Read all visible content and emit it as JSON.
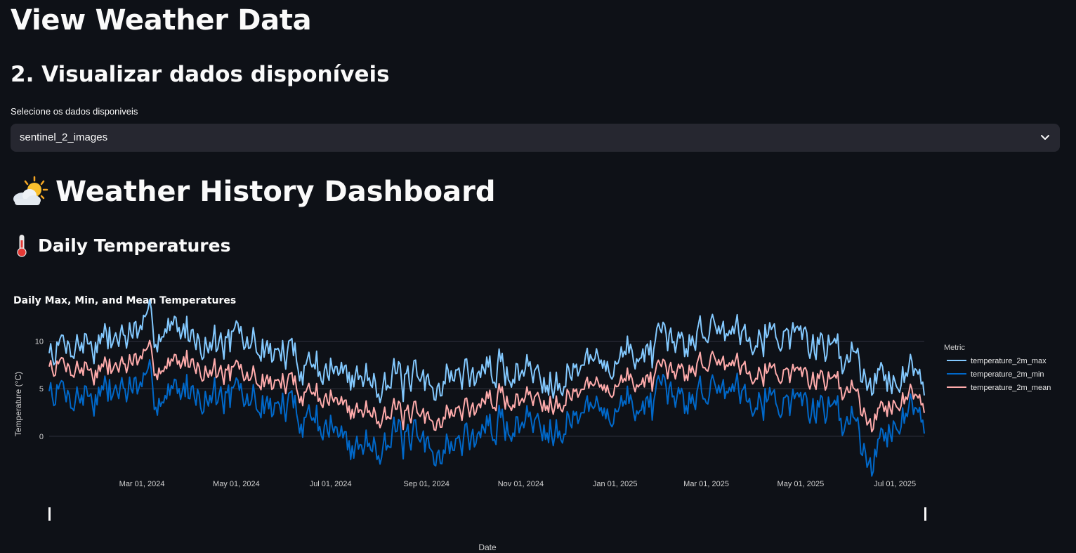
{
  "page": {
    "title": "View Weather Data",
    "section_heading": "2. Visualizar dados disponíveis"
  },
  "data_select": {
    "label": "Selecione os dados disponiveis",
    "selected": "sentinel_2_images",
    "icon": "chevron-down-icon"
  },
  "dashboard": {
    "title": "Weather History Dashboard",
    "title_icon": "cloud-sun-icon",
    "subheading": "Daily Temperatures",
    "subheading_icon": "thermometer-icon"
  },
  "colors": {
    "background": "#0e1117",
    "select_bg": "#262730",
    "max": "#83c9ff",
    "min": "#0068c9",
    "mean": "#ffabab"
  },
  "chart_data": {
    "type": "line",
    "title": "Daily Max, Min, and Mean Temperatures",
    "xlabel": "Date",
    "ylabel": "Temperature (°C)",
    "x_range": [
      "2024-01-01",
      "2025-07-20"
    ],
    "ylim": [
      -4,
      13
    ],
    "y_ticks": [
      0,
      5,
      10
    ],
    "x_ticks": [
      "Mar 01, 2024",
      "May 01, 2024",
      "Jul 01, 2024",
      "Sep 01, 2024",
      "Nov 01, 2024",
      "Jan 01, 2025",
      "Mar 01, 2025",
      "May 01, 2025",
      "Jul 01, 2025"
    ],
    "x_tick_dates": [
      "2024-03-01",
      "2024-05-01",
      "2024-07-01",
      "2024-09-01",
      "2024-11-01",
      "2025-01-01",
      "2025-03-01",
      "2025-05-01",
      "2025-07-01"
    ],
    "grid": true,
    "legend": {
      "title": "Metric",
      "placement": "right"
    },
    "series": [
      {
        "name": "temperature_2m_max",
        "color": "#83c9ff",
        "x": [
          "2024-01-01",
          "2024-01-16",
          "2024-02-01",
          "2024-02-16",
          "2024-03-01",
          "2024-03-16",
          "2024-04-01",
          "2024-04-16",
          "2024-05-01",
          "2024-05-16",
          "2024-06-01",
          "2024-06-16",
          "2024-07-01",
          "2024-07-16",
          "2024-08-01",
          "2024-08-16",
          "2024-09-01",
          "2024-09-16",
          "2024-10-01",
          "2024-10-16",
          "2024-11-01",
          "2024-11-16",
          "2024-12-01",
          "2024-12-16",
          "2025-01-01",
          "2025-01-16",
          "2025-02-01",
          "2025-02-16",
          "2025-03-01",
          "2025-03-16",
          "2025-04-01",
          "2025-04-16",
          "2025-05-01",
          "2025-05-16",
          "2025-06-01",
          "2025-06-16",
          "2025-07-01",
          "2025-07-16"
        ],
        "values": [
          9,
          10,
          10,
          10.5,
          11,
          11.5,
          11,
          10,
          10,
          9.5,
          8.5,
          8,
          7,
          6,
          6.5,
          5.5,
          5,
          6.5,
          6.5,
          7,
          7,
          6.5,
          7,
          7.5,
          8,
          9,
          9,
          10,
          11.5,
          11.5,
          11.5,
          11,
          10.5,
          9.5,
          9,
          6.5,
          6.5,
          6.5
        ]
      },
      {
        "name": "temperature_2m_min",
        "color": "#0068c9",
        "x": [
          "2024-01-01",
          "2024-01-16",
          "2024-02-01",
          "2024-02-16",
          "2024-03-01",
          "2024-03-16",
          "2024-04-01",
          "2024-04-16",
          "2024-05-01",
          "2024-05-16",
          "2024-06-01",
          "2024-06-16",
          "2024-07-01",
          "2024-07-16",
          "2024-08-01",
          "2024-08-16",
          "2024-09-01",
          "2024-09-16",
          "2024-10-01",
          "2024-10-16",
          "2024-11-01",
          "2024-11-16",
          "2024-12-01",
          "2024-12-16",
          "2025-01-01",
          "2025-01-16",
          "2025-02-01",
          "2025-02-16",
          "2025-03-01",
          "2025-03-16",
          "2025-04-01",
          "2025-04-16",
          "2025-05-01",
          "2025-05-16",
          "2025-06-01",
          "2025-06-16",
          "2025-07-01",
          "2025-07-16"
        ],
        "values": [
          5,
          4.5,
          4.5,
          5,
          5,
          4.5,
          5,
          4.5,
          4,
          3.5,
          3,
          2.5,
          1,
          -1.5,
          0,
          -0.5,
          -1.5,
          -1,
          0,
          1,
          1.5,
          1.5,
          2,
          2.5,
          3,
          3.5,
          3.5,
          4,
          5,
          5.5,
          5,
          4,
          3.5,
          3,
          2.5,
          -2,
          2,
          2.5
        ]
      },
      {
        "name": "temperature_2m_mean",
        "color": "#ffabab",
        "x": [
          "2024-01-01",
          "2024-01-16",
          "2024-02-01",
          "2024-02-16",
          "2024-03-01",
          "2024-03-16",
          "2024-04-01",
          "2024-04-16",
          "2024-05-01",
          "2024-05-16",
          "2024-06-01",
          "2024-06-16",
          "2024-07-01",
          "2024-07-16",
          "2024-08-01",
          "2024-08-16",
          "2024-09-01",
          "2024-09-16",
          "2024-10-01",
          "2024-10-16",
          "2024-11-01",
          "2024-11-16",
          "2024-12-01",
          "2024-12-16",
          "2025-01-01",
          "2025-01-16",
          "2025-02-01",
          "2025-02-16",
          "2025-03-01",
          "2025-03-16",
          "2025-04-01",
          "2025-04-16",
          "2025-05-01",
          "2025-05-16",
          "2025-06-01",
          "2025-06-16",
          "2025-07-01",
          "2025-07-16"
        ],
        "values": [
          7.5,
          7.5,
          7,
          7.5,
          8,
          7.5,
          8,
          7,
          6.5,
          6,
          5.5,
          5,
          4,
          2.5,
          3,
          2,
          1.5,
          2.5,
          3,
          4,
          4,
          4,
          4.5,
          5,
          5.5,
          6,
          6,
          7,
          8,
          8,
          7.5,
          7,
          6.5,
          6,
          5.5,
          2,
          4,
          4
        ]
      }
    ]
  }
}
